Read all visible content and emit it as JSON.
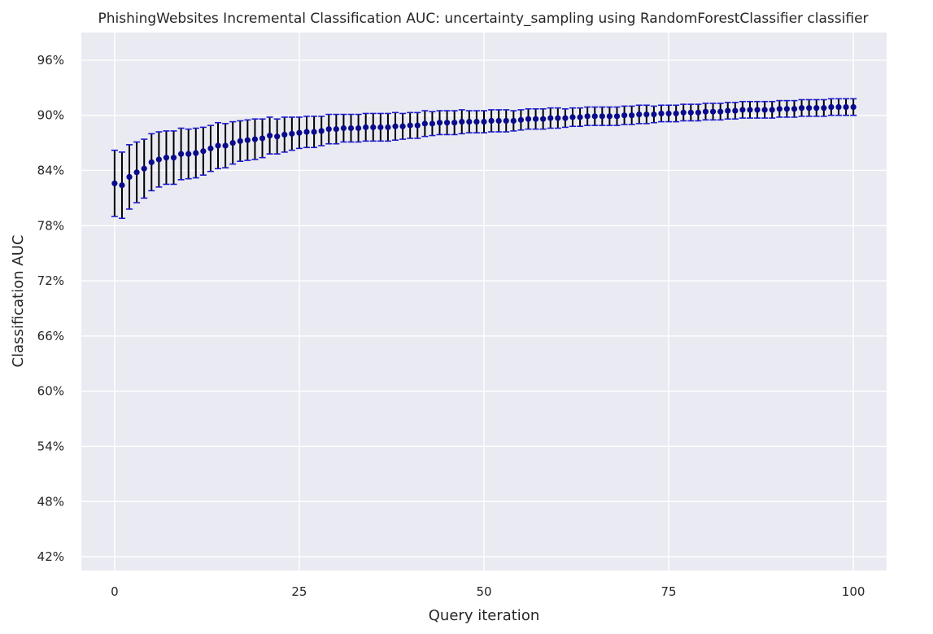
{
  "chart_data": {
    "type": "scatter",
    "title": "PhishingWebsites Incremental Classification AUC: uncertainty_sampling using RandomForestClassifier classifier",
    "xlabel": "Query iteration",
    "ylabel": "Classification AUC",
    "xlim": [
      -4.5,
      104.5
    ],
    "ylim": [
      0.405,
      0.99
    ],
    "xticks": [
      0,
      25,
      50,
      75,
      100
    ],
    "xtick_labels": [
      "0",
      "25",
      "50",
      "75",
      "100"
    ],
    "yticks": [
      0.42,
      0.48,
      0.54,
      0.6,
      0.66,
      0.72,
      0.78,
      0.84,
      0.9,
      0.96
    ],
    "ytick_labels": [
      "42%",
      "48%",
      "54%",
      "60%",
      "66%",
      "72%",
      "78%",
      "84%",
      "90%",
      "96%"
    ],
    "grid": true,
    "style": {
      "background": "#eaeaf2",
      "grid_color": "#ffffff",
      "marker_color": "#0a0a8c",
      "errorbar_color": "#000000",
      "cap_color": "#1a1ad0"
    },
    "series": [
      {
        "x": [
          0,
          1,
          2,
          3,
          4,
          5,
          6,
          7,
          8,
          9,
          10,
          11,
          12,
          13,
          14,
          15,
          16,
          17,
          18,
          19,
          20,
          21,
          22,
          23,
          24,
          25,
          26,
          27,
          28,
          29,
          30,
          31,
          32,
          33,
          34,
          35,
          36,
          37,
          38,
          39,
          40,
          41,
          42,
          43,
          44,
          45,
          46,
          47,
          48,
          49,
          50,
          51,
          52,
          53,
          54,
          55,
          56,
          57,
          58,
          59,
          60,
          61,
          62,
          63,
          64,
          65,
          66,
          67,
          68,
          69,
          70,
          71,
          72,
          73,
          74,
          75,
          76,
          77,
          78,
          79,
          80,
          81,
          82,
          83,
          84,
          85,
          86,
          87,
          88,
          89,
          90,
          91,
          92,
          93,
          94,
          95,
          96,
          97,
          98,
          99,
          100
        ],
        "y": [
          0.826,
          0.824,
          0.833,
          0.838,
          0.842,
          0.849,
          0.852,
          0.854,
          0.854,
          0.858,
          0.858,
          0.859,
          0.861,
          0.864,
          0.867,
          0.867,
          0.87,
          0.872,
          0.873,
          0.874,
          0.875,
          0.878,
          0.877,
          0.879,
          0.88,
          0.881,
          0.882,
          0.882,
          0.883,
          0.885,
          0.885,
          0.886,
          0.886,
          0.886,
          0.887,
          0.887,
          0.887,
          0.887,
          0.888,
          0.888,
          0.889,
          0.889,
          0.891,
          0.891,
          0.892,
          0.892,
          0.892,
          0.893,
          0.893,
          0.893,
          0.893,
          0.894,
          0.894,
          0.894,
          0.894,
          0.895,
          0.896,
          0.896,
          0.896,
          0.897,
          0.897,
          0.897,
          0.898,
          0.898,
          0.899,
          0.899,
          0.899,
          0.899,
          0.899,
          0.9,
          0.9,
          0.901,
          0.901,
          0.901,
          0.902,
          0.902,
          0.902,
          0.903,
          0.903,
          0.903,
          0.904,
          0.904,
          0.904,
          0.905,
          0.905,
          0.906,
          0.906,
          0.906,
          0.906,
          0.906,
          0.907,
          0.907,
          0.907,
          0.908,
          0.908,
          0.908,
          0.908,
          0.909,
          0.909,
          0.909,
          0.909
        ],
        "yerr": [
          0.036,
          0.036,
          0.035,
          0.033,
          0.032,
          0.031,
          0.03,
          0.029,
          0.029,
          0.028,
          0.027,
          0.027,
          0.026,
          0.025,
          0.025,
          0.024,
          0.023,
          0.022,
          0.022,
          0.022,
          0.021,
          0.02,
          0.019,
          0.019,
          0.018,
          0.017,
          0.017,
          0.017,
          0.016,
          0.016,
          0.016,
          0.015,
          0.015,
          0.015,
          0.015,
          0.015,
          0.015,
          0.015,
          0.015,
          0.014,
          0.014,
          0.014,
          0.014,
          0.013,
          0.013,
          0.013,
          0.013,
          0.013,
          0.012,
          0.012,
          0.012,
          0.012,
          0.012,
          0.012,
          0.011,
          0.011,
          0.011,
          0.011,
          0.011,
          0.011,
          0.011,
          0.01,
          0.01,
          0.01,
          0.01,
          0.01,
          0.01,
          0.01,
          0.01,
          0.01,
          0.01,
          0.01,
          0.01,
          0.009,
          0.009,
          0.009,
          0.009,
          0.009,
          0.009,
          0.009,
          0.009,
          0.009,
          0.009,
          0.009,
          0.009,
          0.009,
          0.009,
          0.009,
          0.009,
          0.009,
          0.009,
          0.009,
          0.009,
          0.009,
          0.009,
          0.009,
          0.009,
          0.009,
          0.009,
          0.009,
          0.009
        ]
      }
    ]
  }
}
